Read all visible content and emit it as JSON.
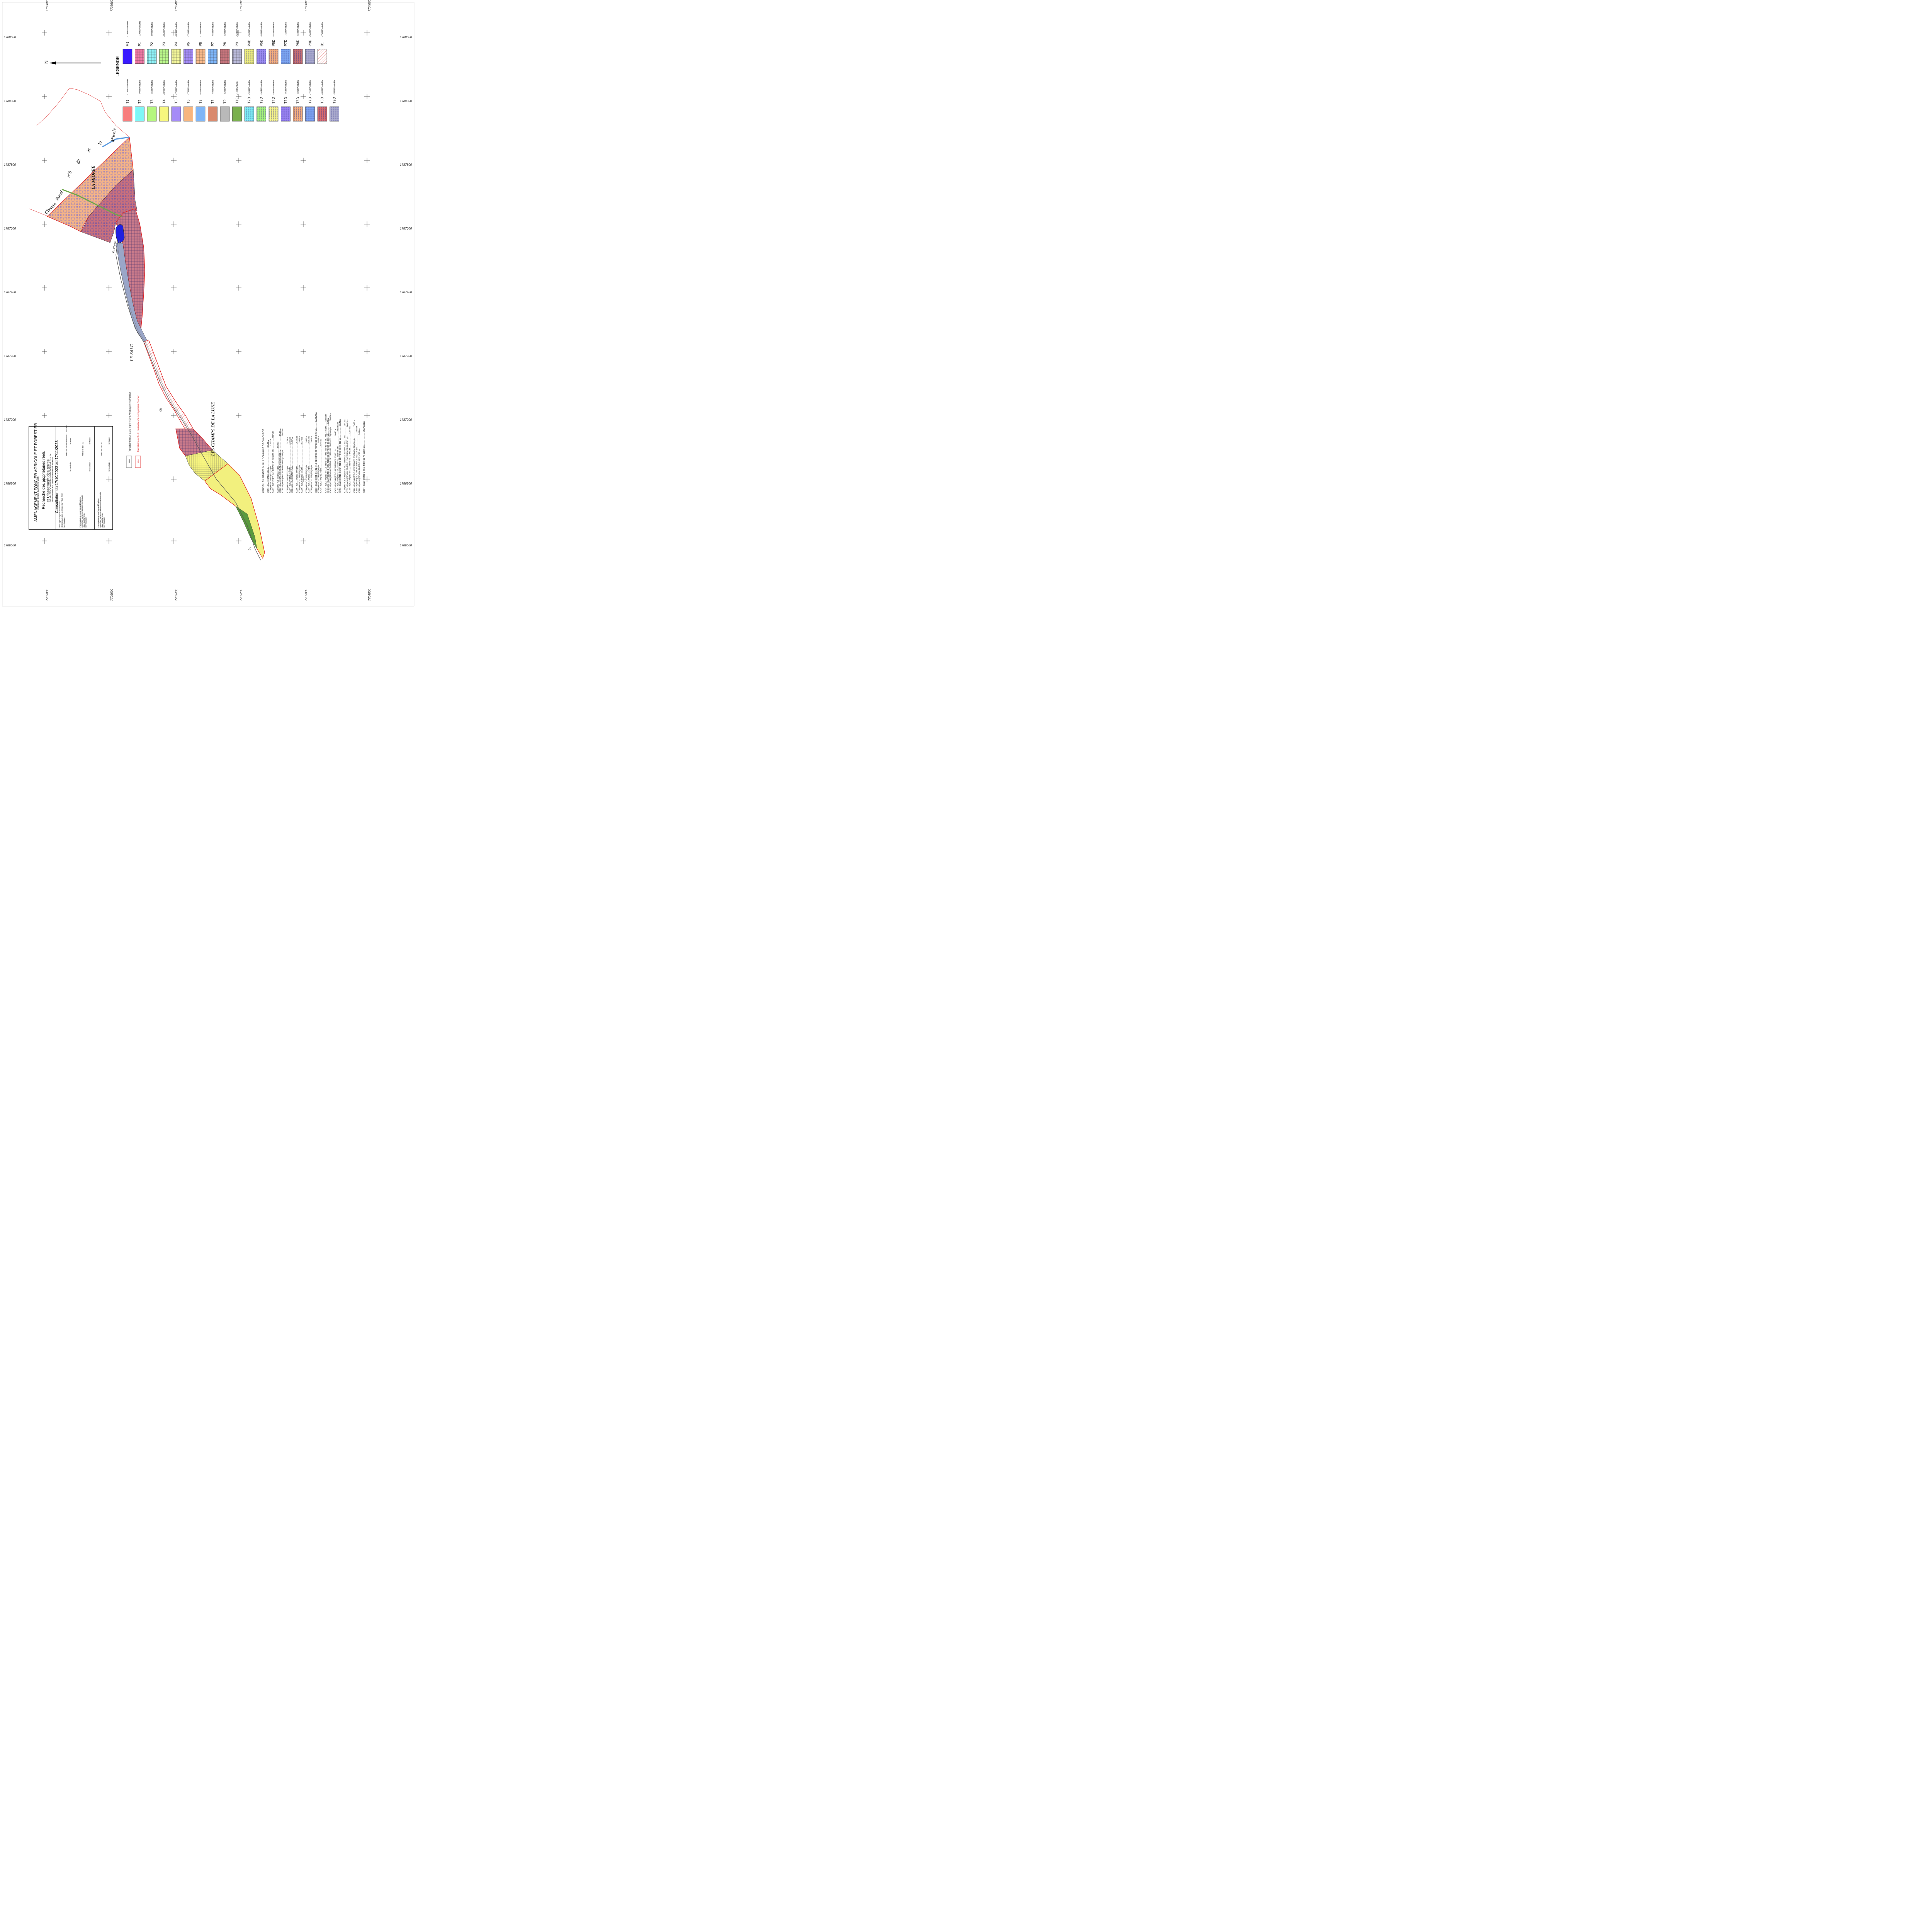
{
  "title_block": {
    "line1": "AMENAGEMENT FONCIER AGRICOLE ET FORESTIER",
    "line2": "(Application de la loi du 23 février 2005)",
    "line3": "Recherche des propriétaires réels",
    "line4": "et Classement des terres",
    "line5": "exécutés dans la zone colorée selon la légende ci-contre",
    "line6": "sous le contrôle du Conseil Départemental de l'AUBE",
    "line7": "Consultation du 17/10/2023 au 17/11/2023",
    "box1_a": "Plan approuvé par la Commission",
    "box1_b": "Communale dans sa séance du 7 Juin 2023",
    "box1_c": "le Secrétaire :",
    "box1_d": "le Président :",
    "box1_e": "AFFICHE DU 17/10/2023 au 17/11/2023",
    "box1_f": "le Maire :",
    "box2_a": "Plan portant en rouge les modifications",
    "box2_b": "prescrites par la Commission Communale",
    "box2_c": "dans sa séance du",
    "box2_d": "le Secrétaire :",
    "box2_e": "le Président :",
    "box2_f": "AFFICHE DU",
    "box2_g": "AU",
    "box2_h": "le Maire :",
    "box3_a": "Plan portant en bleu les modifications",
    "box3_b": "prescrites par la Commission Départementale",
    "box3_c": "dans sa séance du",
    "box3_d": "le Secrétaire :",
    "box3_e": "le Président :",
    "box3_f": "AFFICHE DU",
    "box3_g": "AU",
    "box3_h": "le Maire :"
  },
  "perimeter_legend": {
    "included": "Parcellaire inclus dans le périmètre Aménagement Foncier",
    "excluded": "Parcellaire exclu du périmètre d'Aménagement Foncier",
    "included_sample": "1304",
    "excluded_sample": "1318"
  },
  "legend": {
    "title": "LEGENDE",
    "north": "N",
    "row1": [
      {
        "code": "M1",
        "value": "- 10000 Points/Ha",
        "color": "#3a1aff",
        "pattern": "solid"
      },
      {
        "code": "P1",
        "value": "- 10000 Points/Ha",
        "color": "#f07aa6",
        "pattern": "grid"
      },
      {
        "code": "P2",
        "value": "- 9000 Points/Ha",
        "color": "#8ff2f7",
        "pattern": "grid"
      },
      {
        "code": "P3",
        "value": "- 8500 Points/Ha",
        "color": "#b9f58a",
        "pattern": "grid"
      },
      {
        "code": "P4",
        "value": "- 8200 Points/Ha",
        "color": "#f2f59a",
        "pattern": "grid"
      },
      {
        "code": "P5",
        "value": "- 7800 Points/Ha",
        "color": "#a48cf7",
        "pattern": "grid"
      },
      {
        "code": "P6",
        "value": "- 7500 Points/Ha",
        "color": "#f7b98a",
        "pattern": "grid"
      },
      {
        "code": "P7",
        "value": "- 6500 Points/Ha",
        "color": "#7eb5f7",
        "pattern": "grid"
      },
      {
        "code": "P8",
        "value": "- 6000 Points/Ha",
        "color": "#c9767e",
        "pattern": "grid"
      },
      {
        "code": "P9",
        "value": "- 5000 Points/Ha",
        "color": "#b9b9d9",
        "pattern": "grid"
      },
      {
        "code": "P4D",
        "value": "- 9020 Points/Ha",
        "color": "#f2f27e",
        "pattern": "dots"
      },
      {
        "code": "P5D",
        "value": "- 8580 Points/Ha",
        "color": "#9c8cf2",
        "pattern": "dots"
      },
      {
        "code": "P6D",
        "value": "- 8250 Points/Ha",
        "color": "#f5b07e",
        "pattern": "dots"
      },
      {
        "code": "P7D",
        "value": "- 7150 Points/Ha",
        "color": "#7eaaf5",
        "pattern": "dots"
      },
      {
        "code": "P8D",
        "value": "- 6600 Points/Ha",
        "color": "#c97070",
        "pattern": "dots"
      },
      {
        "code": "P9D",
        "value": "- 5500 Points/Ha",
        "color": "#b0b0d0",
        "pattern": "dots"
      },
      {
        "code": "B1",
        "value": "- 7500 Points/Ha",
        "color": "#ffd0d0",
        "pattern": "hatch"
      }
    ],
    "row2": [
      {
        "code": "T1",
        "value": "- 10000 Points/Ha",
        "color": "#f77e7e",
        "pattern": "solid"
      },
      {
        "code": "T2",
        "value": "- 9000 Points/Ha",
        "color": "#7ef7f7",
        "pattern": "solid"
      },
      {
        "code": "T3",
        "value": "- 8500 Points/Ha",
        "color": "#b5f77e",
        "pattern": "solid"
      },
      {
        "code": "T4",
        "value": "- 8200 Points/Ha",
        "color": "#f7f77e",
        "pattern": "solid"
      },
      {
        "code": "T5",
        "value": "- 7800 Points/Ha",
        "color": "#a58cf7",
        "pattern": "solid"
      },
      {
        "code": "T6",
        "value": "- 7500 Points/Ha",
        "color": "#f7b57e",
        "pattern": "solid"
      },
      {
        "code": "T7",
        "value": "- 6500 Points/Ha",
        "color": "#7eb5f7",
        "pattern": "solid"
      },
      {
        "code": "T8",
        "value": "- 6000 Points/Ha",
        "color": "#d98a6e",
        "pattern": "solid"
      },
      {
        "code": "T9",
        "value": "- 5000 Points/Ha",
        "color": "#b9b9b9",
        "pattern": "solid"
      },
      {
        "code": "T10",
        "value": "- 100 Points/Ha",
        "color": "#7ab04e",
        "pattern": "solid"
      },
      {
        "code": "T2D",
        "value": "- 9450 Points/Ha",
        "color": "#7ef2f7",
        "pattern": "dots"
      },
      {
        "code": "T3D",
        "value": "- 9350 Points/Ha",
        "color": "#a8f57a",
        "pattern": "dots"
      },
      {
        "code": "T4D",
        "value": "- 9020 Points/Ha",
        "color": "#f7f58a",
        "pattern": "dots"
      },
      {
        "code": "T5D",
        "value": "- 8580 Points/Ha",
        "color": "#9c84f5",
        "pattern": "dots"
      },
      {
        "code": "T6D",
        "value": "- 8250 Points/Ha",
        "color": "#f7b07e",
        "pattern": "dots"
      },
      {
        "code": "T7D",
        "value": "- 7150 Points/Ha",
        "color": "#7ea8f7",
        "pattern": "dots"
      },
      {
        "code": "T8D",
        "value": "- 6600 Points/Ha",
        "color": "#d96b6b",
        "pattern": "dots"
      },
      {
        "code": "T9D",
        "value": "- 5500 Points/Ha",
        "color": "#b0b0d0",
        "pattern": "dots"
      }
    ]
  },
  "map_labels": {
    "chemin": "Chemin",
    "rural": "Rural",
    "n9": "n°9",
    "dit": "dit",
    "de": "de",
    "la": "la",
    "mivoie": "M'ivoie",
    "la_midree": "LA MIDREE",
    "le_sale": "LE SALE",
    "les_champs": "LES CHAMPS DE LA LUNE",
    "ru": "du",
    "ru2": "Ru",
    "riv": "Ru d'Étroit"
  },
  "coords_top": [
    "7705800",
    "7705600",
    "7705400",
    "7705200",
    "7705000",
    "7704800"
  ],
  "coords_bottom": [
    "7705800",
    "7705600",
    "7705400",
    "7705200",
    "7705000",
    "7704800"
  ],
  "coords_side": [
    "1788800",
    "1788000",
    "1787800",
    "1787600",
    "1787400",
    "1787200",
    "1787000",
    "1786800",
    "1786600"
  ],
  "parcel_list": {
    "title": "PARCELLES SITUEES SUR LA COMMUNE DE CHAOURCE",
    "lines": [
      "C 291 - Cp-470 (P9)-6665 pts.....................................81a52ca",
      "C 306p01 - Cp-480 (T10)-2 pts.....................................11a57ca",
      "C 307 - Cp-480 (P4-0 27 1/2-P8-0 14 46)-3156 pts.....................42a40ca",
      "",
      "C 301p01 - Cp-480 (T10)-6 pts..................................6a06ca",
      "C 302 - Cp-480 (P4-0 39 81-P8-0 50 86)-6316 pts..........................90a87ca",
      "C 303 - Cp-480 (P4-0 28 84-P8-0 08 71)-2516 pts..........................37a55ca",
      "",
      "C 303p01 - Cp-480 (T10)-2 pts..........................................2a20ca",
      "C 304 - Cp-390 (B1)-2543 pts..........................................33a91ca",
      "C 304p01 - Cp-390 (T10)-2 pts..........................................1a57ca",
      "",
      "C 305 - Cp-1310 (B1)-1909 pts..........................................25a45ca",
      "C 305p01 - Cp-1310 (T10)-2 pts..........................................1a85ca",
      "C 305 - Cp-2580 (B1)-181 pts..........................................15a74ca",
      "",
      "C 306p01 - Cp-2580 (T10)-2 pts..........................................1a87ca",
      "C 307 - Cp-1820 (B1)-1162 pts..........................................15a62ca",
      "C 307p01 - Cp-1820 (T10)-3 pts..........................................3a45ca",
      "",
      "C 308 - Cp-2740 (B1-0 19 92-M1-0 01 89-P8-0 86 73-P9-0 28 93)-8453 pts...........1ha39a47ca",
      "C 308p01 - Cp-2740 (T10)-6 pts..........................................6a90ca",
      "C 435 - Cp-2740 (P8)-24 pts..........................................6a46ca",
      "",
      "C 436 - Cp-2740 (T10-0 01 01-T8D-0 09 44-M1-0 00 31-P8-0 51 46)-3146 pts.........53a22ca",
      "C 436p01 - Cp-2760 (T10-0 00 52-T8D-0 09 25-P8-0 05 30)-1016 pts.................1a40ca",
      "C 437 - Cp-2740 (T10-0 00 01-T8D-0 01 77-M1-0 07 59-P8-0 51 58)-960 pts............10a85ca",
      "",
      "C 439 - Cp-2740 (T8D-0 09 28-M1-0 00 15)-62 pts..........................0a47ca",
      "C 791 - Cp-2760 (T8D-0 64 33-T8D-0 22 22)-6496 pts..........................1ha17a09ca",
      "C 792 - Cp-2730 (T10-0 02 04-T8D-0 13 77-P8-0 00 06)-833 pts.....................15a46ca",
      "",
      "C 795p01 - Cp-2730 (T10-0 02 33-T8D-0 27 35-P8-0 00 06)-27 pts..................1a41ca",
      "C 797 - Cp-490 (T10-0 02 71-T8D-0 10 47-T8D-0 11 84)-1565 pts..................24a62ca",
      "C 798 - Cp-2740 (T10-0 01 22-T8D-0 72 74)-843 pts..........................72a44ca",
      "",
      "C 801 - Cp-2740 (T8D-0 00 52-M1-0 01 73-P9-0 04 77)-490 pts......................7a42ca",
      "C 802 - Cp-490 (T8D-0 09 20-T8D-0 09 95)-1335 pts..........................18a60ca",
      "C 803 - Cp-490 (T10-0 00 97-T8D-0 09 31)-697 pts..........................8a08ca",
      "",
      "C 804 - Cp-2740 (T8D-2 47 11-T7D-0 07 70)-22015 pts..........................2ha71a92ca"
    ]
  }
}
